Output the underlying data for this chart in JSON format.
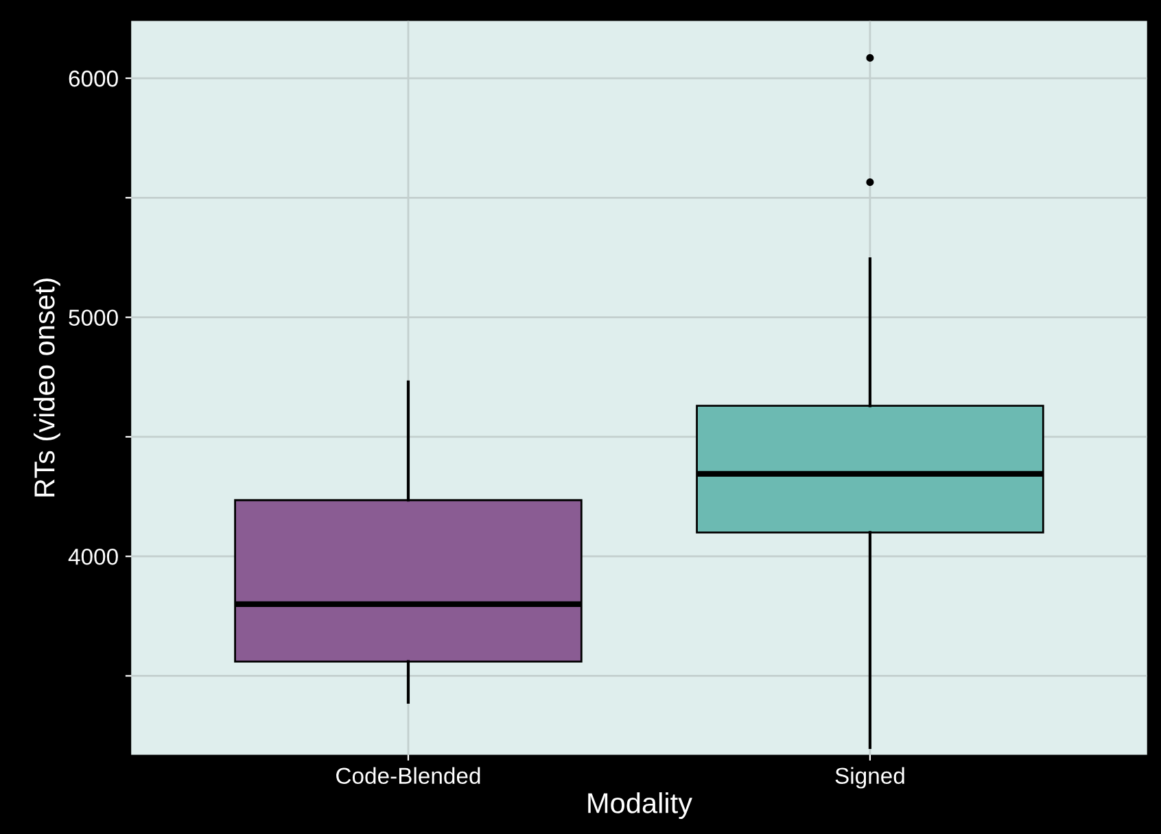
{
  "chart_data": {
    "type": "box",
    "xlabel": "Modality",
    "ylabel": "RTs (video onset)",
    "categories": [
      "Code-Blended",
      "Signed"
    ],
    "colors": [
      "#8a5c93",
      "#6cbab2"
    ],
    "boxes": [
      {
        "low": 3390,
        "q1": 3560,
        "median": 3800,
        "q3": 4235,
        "high": 4730
      },
      {
        "low": 3200,
        "q1": 4100,
        "median": 4345,
        "q3": 4630,
        "high": 5245,
        "outliers": [
          5565,
          6085
        ]
      }
    ],
    "ylim": [
      3170,
      6240
    ],
    "yticks": [
      {
        "value": 3500,
        "label": null
      },
      4000,
      {
        "value": 4500,
        "label": null
      },
      5000,
      {
        "value": 5500,
        "label": null
      },
      6000
    ],
    "grid": true
  }
}
